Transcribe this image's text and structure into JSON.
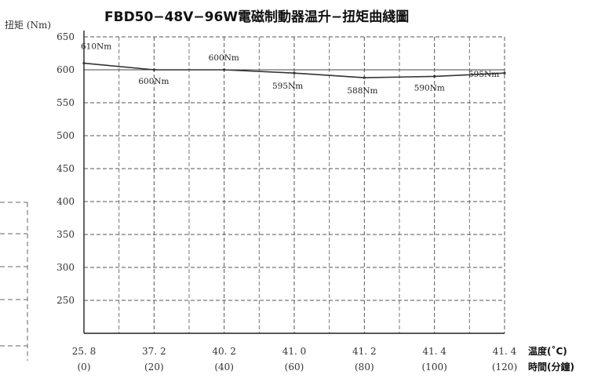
{
  "chart_data": {
    "type": "line",
    "title": "FBD50−48V−96W電磁制動器温升−扭矩曲綫圖",
    "ylabel": "扭矩 (Nm)",
    "xlabel_primary": "温度(˚C)",
    "xlabel_secondary": "時間(分鐘)",
    "ylim": [
      200,
      650
    ],
    "yticks": [
      650,
      600,
      550,
      500,
      450,
      400,
      350,
      300,
      250
    ],
    "x_temperature": [
      "25. 8",
      "37. 2",
      "40. 2",
      "41. 0",
      "41. 2",
      "41. 4",
      "41. 4"
    ],
    "x_time": [
      "(0)",
      "(20)",
      "(40)",
      "(60)",
      "(80)",
      "(100)",
      "(120)"
    ],
    "time_minutes": [
      0,
      20,
      40,
      60,
      80,
      100,
      120
    ],
    "series": [
      {
        "values": [
          610,
          600,
          600,
          595,
          588,
          590,
          595
        ],
        "data_labels": [
          "610Nm",
          "600Nm",
          "600Nm",
          "595Nm",
          "588Nm",
          "590Nm",
          "595Nm"
        ]
      }
    ],
    "reference_line": 600,
    "grid": true,
    "line_color": "#333333"
  }
}
